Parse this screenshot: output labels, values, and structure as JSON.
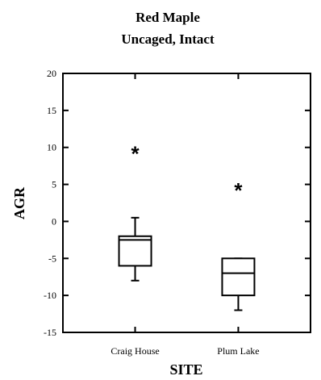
{
  "chart_data": {
    "type": "box",
    "title": "Red Maple",
    "subtitle": "Uncaged, Intact",
    "xlabel": "SITE",
    "ylabel": "AGR",
    "ylim": [
      -15,
      20
    ],
    "y_ticks": [
      20,
      15,
      10,
      5,
      0,
      -5,
      -10,
      -15
    ],
    "y_tick_labels": [
      "20",
      "15",
      "10",
      "5",
      "0",
      "-5",
      "-10",
      "-15"
    ],
    "categories": [
      "Craig House",
      "Plum Lake"
    ],
    "grid": false,
    "legend": "none",
    "boxes": [
      {
        "category": "Craig House",
        "whisker_low": -8,
        "q1": -6,
        "median": -2.5,
        "q3": -2,
        "whisker_high": 0.5,
        "outliers": [
          9.5
        ]
      },
      {
        "category": "Plum Lake",
        "whisker_low": -12,
        "q1": -10,
        "median": -7,
        "q3": -5,
        "whisker_high": -5,
        "outliers": [
          4.5
        ]
      }
    ],
    "outlier_marker": "*"
  }
}
